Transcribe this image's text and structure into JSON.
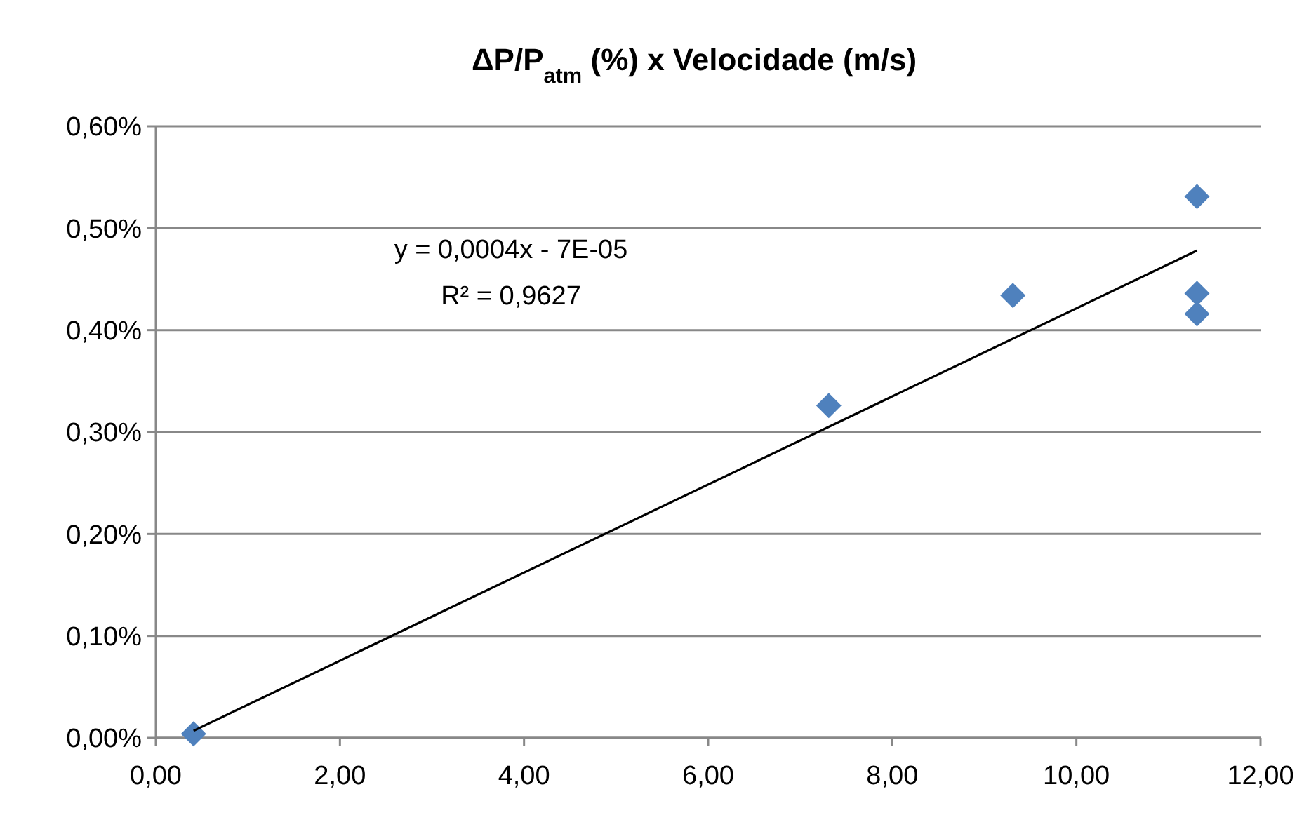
{
  "chart_data": {
    "type": "scatter",
    "title": "ΔP/P$_{atm}$ (%) x Velocidade (m/s)",
    "series": [
      {
        "color": "#4f81bd",
        "marker": "diamond",
        "x": [
          0.41,
          7.31,
          9.31,
          11.31,
          11.31,
          11.31
        ],
        "values": [
          0.004,
          0.326,
          0.434,
          0.531,
          0.436,
          0.416
        ]
      },
      {
        "type": "line",
        "color": "#000000",
        "marker": "none",
        "line_style": "solid",
        "x": [
          0.41,
          11.31
        ],
        "values": [
          0.007,
          0.478
        ]
      }
    ],
    "xlim": [
      0,
      12
    ],
    "xticks": [
      {
        "value": 0,
        "label": "0,00"
      },
      {
        "value": 2,
        "label": "2,00"
      },
      {
        "value": 4,
        "label": "4,00"
      },
      {
        "value": 6,
        "label": "6,00"
      },
      {
        "value": 8,
        "label": "8,00"
      },
      {
        "value": 10,
        "label": "10,00"
      },
      {
        "value": 12,
        "label": "12,00"
      }
    ],
    "ylim": [
      0,
      0.6
    ],
    "yticks": [
      {
        "value": 0,
        "label": "0,00%"
      },
      {
        "value": 0.1,
        "label": "0,10%"
      },
      {
        "value": 0.2,
        "label": "0,20%"
      },
      {
        "value": 0.3,
        "label": "0,30%"
      },
      {
        "value": 0.4,
        "label": "0,40%"
      },
      {
        "value": 0.5,
        "label": "0,50%"
      },
      {
        "value": 0.6,
        "label": "0,60%"
      }
    ],
    "grid": "y",
    "annotations": [
      "y = 0,0004x - 7E-05",
      "R² = 0,9627"
    ]
  }
}
